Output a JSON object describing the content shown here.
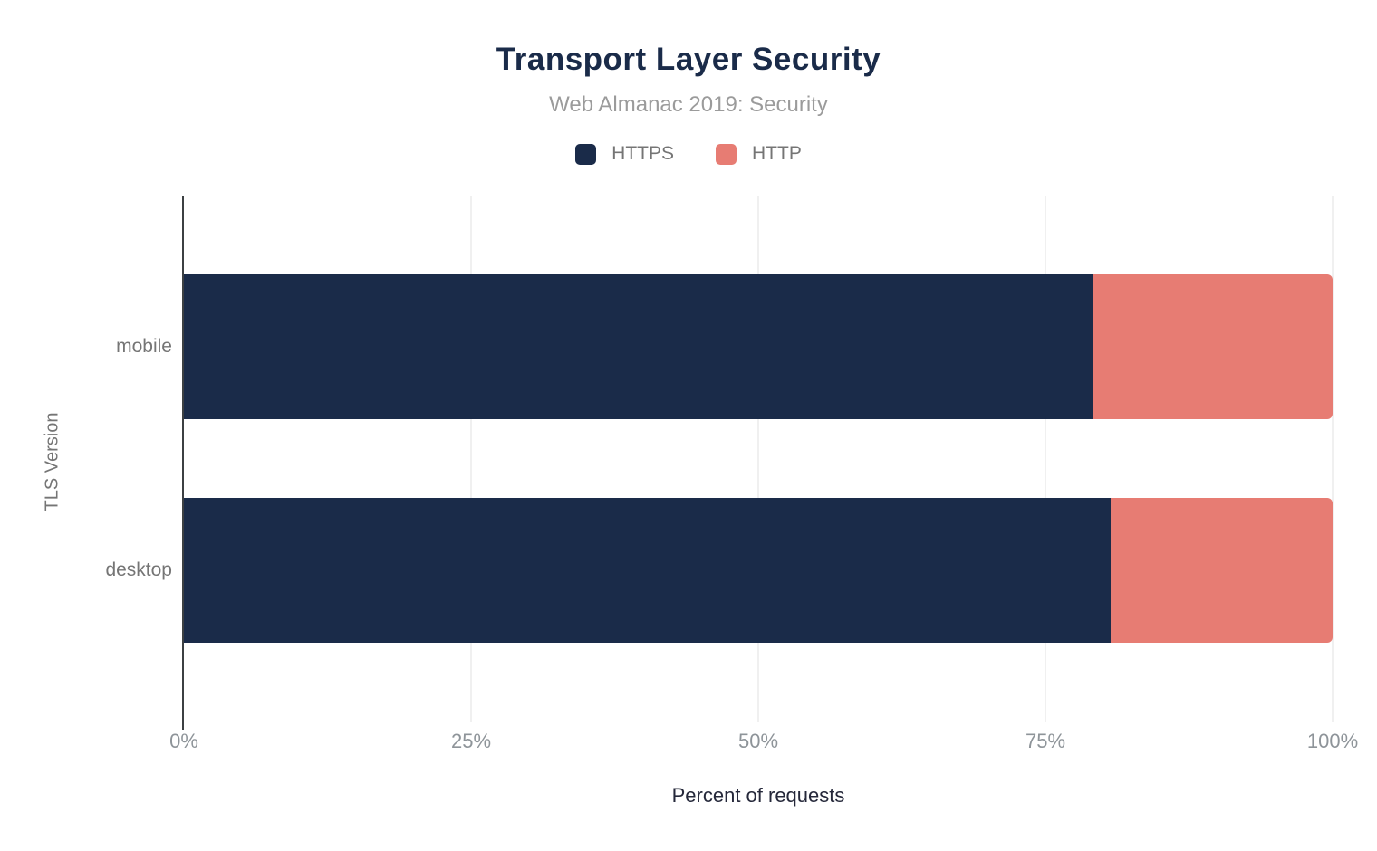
{
  "title": "Transport Layer Security",
  "subtitle": "Web Almanac 2019: Security",
  "legend": {
    "items": [
      {
        "label": "HTTPS",
        "color": "#1a2b49"
      },
      {
        "label": "HTTP",
        "color": "#e77c73"
      }
    ]
  },
  "chart_data": {
    "type": "bar",
    "orientation": "horizontal",
    "stacked": true,
    "title": "Transport Layer Security",
    "subtitle": "Web Almanac 2019: Security",
    "categories": [
      "mobile",
      "desktop"
    ],
    "series": [
      {
        "name": "HTTPS",
        "color": "#1a2b49",
        "values": [
          79.1,
          80.7
        ]
      },
      {
        "name": "HTTP",
        "color": "#e77c73",
        "values": [
          20.9,
          19.3
        ]
      }
    ],
    "xlabel": "Percent of requests",
    "ylabel": "TLS Version",
    "xlim": [
      0,
      100
    ],
    "x_tick_labels": [
      "0%",
      "25%",
      "50%",
      "75%",
      "100%"
    ],
    "grid": true,
    "legend_position": "top"
  },
  "colors": {
    "title": "#1a2b49",
    "subtitle": "#9b9b9b",
    "tick_label": "#8e9499",
    "category_label": "#757575",
    "x_axis_title": "#25283a",
    "gridline": "#f0f0f0",
    "axis_line": "#3c4043",
    "background": "#ffffff"
  }
}
